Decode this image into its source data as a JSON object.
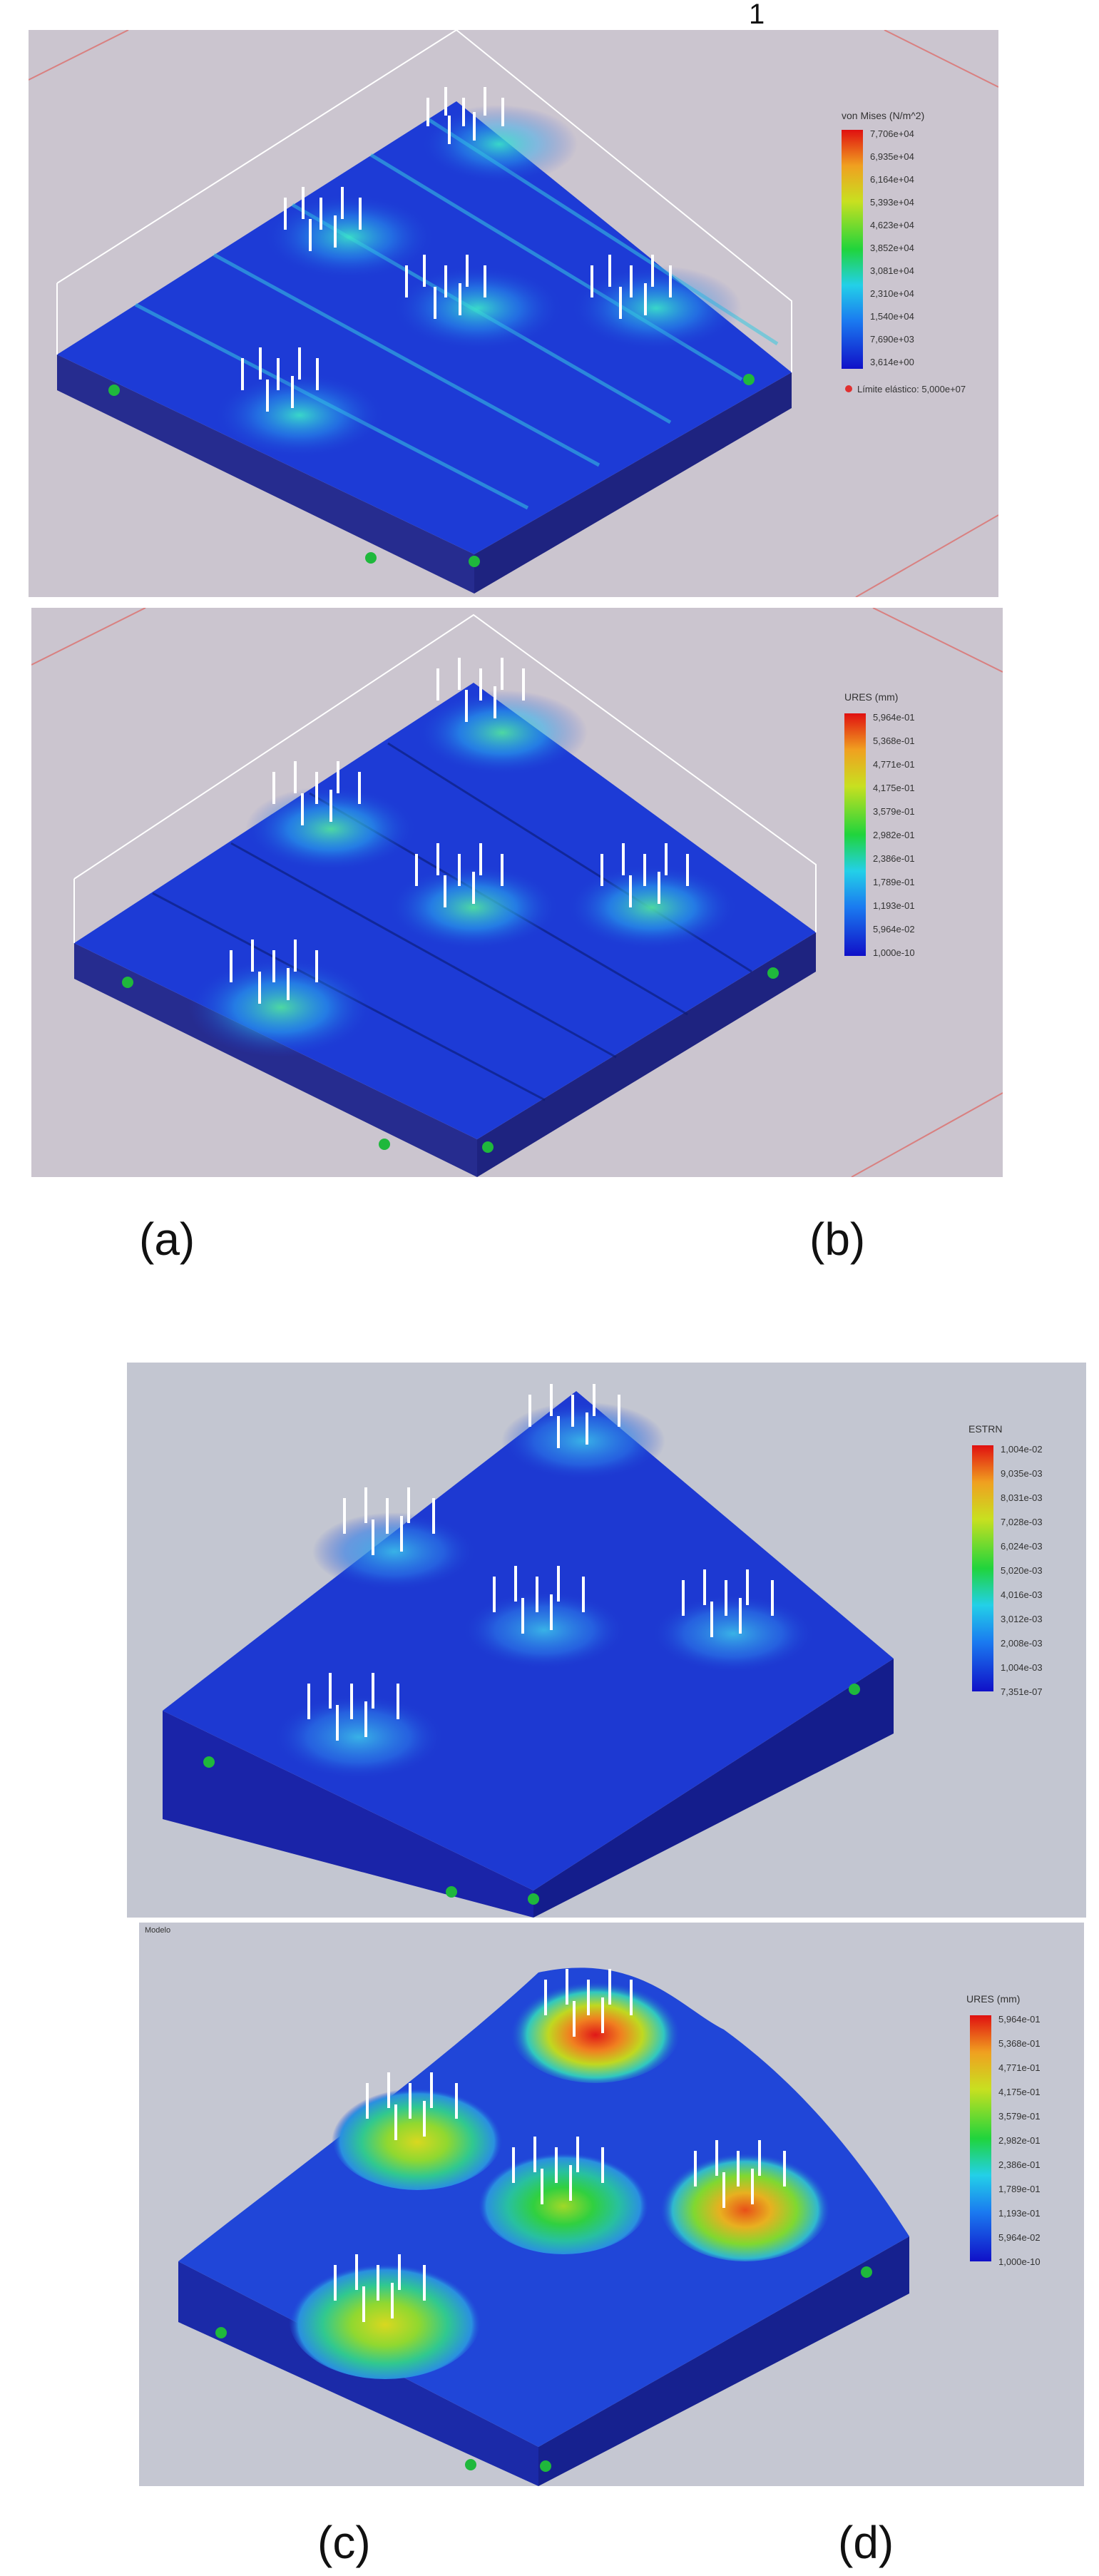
{
  "figure": {
    "top_mark": "1",
    "captions": {
      "a": "(a)",
      "b": "(b)",
      "c": "(c)",
      "d": "(d)"
    }
  },
  "panel_a": {
    "legend_title": "von Mises (N/m^2)",
    "legend_values": [
      "7,706e+04",
      "6,935e+04",
      "6,164e+04",
      "5,393e+04",
      "4,623e+04",
      "3,852e+04",
      "3,081e+04",
      "2,310e+04",
      "1,540e+04",
      "7,690e+03",
      "3,614e+00"
    ],
    "yield_label": "Límite elástico: 5,000e+07",
    "colors": {
      "background": "#cbc5cf",
      "plate": "#1d3bd6",
      "side": "#262c8f"
    }
  },
  "panel_b": {
    "legend_title": "URES (mm)",
    "legend_values": [
      "5,964e-01",
      "5,368e-01",
      "4,771e-01",
      "4,175e-01",
      "3,579e-01",
      "2,982e-01",
      "2,386e-01",
      "1,789e-01",
      "1,193e-01",
      "5,964e-02",
      "1,000e-10"
    ],
    "colors": {
      "background": "#cbc5cf",
      "plate": "#1d3bd6",
      "side": "#262c8f"
    }
  },
  "panel_c": {
    "legend_title": "ESTRN",
    "legend_values": [
      "1,004e-02",
      "9,035e-03",
      "8,031e-03",
      "7,028e-03",
      "6,024e-03",
      "5,020e-03",
      "4,016e-03",
      "3,012e-03",
      "2,008e-03",
      "1,004e-03",
      "7,351e-07"
    ],
    "colors": {
      "background": "#c3c6d1",
      "plate": "#1d39d2",
      "side": "#1a24a8"
    }
  },
  "panel_d": {
    "corner_label": "Modelo",
    "legend_title": "URES (mm)",
    "legend_values": [
      "5,964e-01",
      "5,368e-01",
      "4,771e-01",
      "4,175e-01",
      "3,579e-01",
      "2,982e-01",
      "2,386e-01",
      "1,789e-01",
      "1,193e-01",
      "5,964e-02",
      "1,000e-10"
    ],
    "colors": {
      "background": "#c5c7d2",
      "plate": "#2046d8",
      "side": "#1b2aa8"
    }
  }
}
